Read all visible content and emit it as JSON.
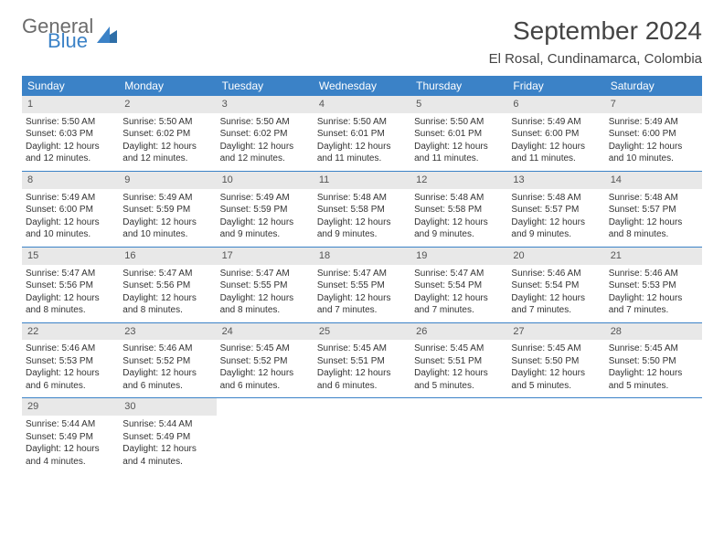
{
  "brand": {
    "part1": "General",
    "part2": "Blue"
  },
  "title": "September 2024",
  "location": "El Rosal, Cundinamarca, Colombia",
  "colors": {
    "header_bg": "#3b82c7",
    "band_bg": "#e8e8e8",
    "text": "#333333",
    "logo_gray": "#6b6b6b",
    "logo_blue": "#3b82c7",
    "page_bg": "#ffffff"
  },
  "weekdays": [
    "Sunday",
    "Monday",
    "Tuesday",
    "Wednesday",
    "Thursday",
    "Friday",
    "Saturday"
  ],
  "weeks": [
    [
      {
        "n": "1",
        "sr": "5:50 AM",
        "ss": "6:03 PM",
        "dl": "12 hours and 12 minutes."
      },
      {
        "n": "2",
        "sr": "5:50 AM",
        "ss": "6:02 PM",
        "dl": "12 hours and 12 minutes."
      },
      {
        "n": "3",
        "sr": "5:50 AM",
        "ss": "6:02 PM",
        "dl": "12 hours and 12 minutes."
      },
      {
        "n": "4",
        "sr": "5:50 AM",
        "ss": "6:01 PM",
        "dl": "12 hours and 11 minutes."
      },
      {
        "n": "5",
        "sr": "5:50 AM",
        "ss": "6:01 PM",
        "dl": "12 hours and 11 minutes."
      },
      {
        "n": "6",
        "sr": "5:49 AM",
        "ss": "6:00 PM",
        "dl": "12 hours and 11 minutes."
      },
      {
        "n": "7",
        "sr": "5:49 AM",
        "ss": "6:00 PM",
        "dl": "12 hours and 10 minutes."
      }
    ],
    [
      {
        "n": "8",
        "sr": "5:49 AM",
        "ss": "6:00 PM",
        "dl": "12 hours and 10 minutes."
      },
      {
        "n": "9",
        "sr": "5:49 AM",
        "ss": "5:59 PM",
        "dl": "12 hours and 10 minutes."
      },
      {
        "n": "10",
        "sr": "5:49 AM",
        "ss": "5:59 PM",
        "dl": "12 hours and 9 minutes."
      },
      {
        "n": "11",
        "sr": "5:48 AM",
        "ss": "5:58 PM",
        "dl": "12 hours and 9 minutes."
      },
      {
        "n": "12",
        "sr": "5:48 AM",
        "ss": "5:58 PM",
        "dl": "12 hours and 9 minutes."
      },
      {
        "n": "13",
        "sr": "5:48 AM",
        "ss": "5:57 PM",
        "dl": "12 hours and 9 minutes."
      },
      {
        "n": "14",
        "sr": "5:48 AM",
        "ss": "5:57 PM",
        "dl": "12 hours and 8 minutes."
      }
    ],
    [
      {
        "n": "15",
        "sr": "5:47 AM",
        "ss": "5:56 PM",
        "dl": "12 hours and 8 minutes."
      },
      {
        "n": "16",
        "sr": "5:47 AM",
        "ss": "5:56 PM",
        "dl": "12 hours and 8 minutes."
      },
      {
        "n": "17",
        "sr": "5:47 AM",
        "ss": "5:55 PM",
        "dl": "12 hours and 8 minutes."
      },
      {
        "n": "18",
        "sr": "5:47 AM",
        "ss": "5:55 PM",
        "dl": "12 hours and 7 minutes."
      },
      {
        "n": "19",
        "sr": "5:47 AM",
        "ss": "5:54 PM",
        "dl": "12 hours and 7 minutes."
      },
      {
        "n": "20",
        "sr": "5:46 AM",
        "ss": "5:54 PM",
        "dl": "12 hours and 7 minutes."
      },
      {
        "n": "21",
        "sr": "5:46 AM",
        "ss": "5:53 PM",
        "dl": "12 hours and 7 minutes."
      }
    ],
    [
      {
        "n": "22",
        "sr": "5:46 AM",
        "ss": "5:53 PM",
        "dl": "12 hours and 6 minutes."
      },
      {
        "n": "23",
        "sr": "5:46 AM",
        "ss": "5:52 PM",
        "dl": "12 hours and 6 minutes."
      },
      {
        "n": "24",
        "sr": "5:45 AM",
        "ss": "5:52 PM",
        "dl": "12 hours and 6 minutes."
      },
      {
        "n": "25",
        "sr": "5:45 AM",
        "ss": "5:51 PM",
        "dl": "12 hours and 6 minutes."
      },
      {
        "n": "26",
        "sr": "5:45 AM",
        "ss": "5:51 PM",
        "dl": "12 hours and 5 minutes."
      },
      {
        "n": "27",
        "sr": "5:45 AM",
        "ss": "5:50 PM",
        "dl": "12 hours and 5 minutes."
      },
      {
        "n": "28",
        "sr": "5:45 AM",
        "ss": "5:50 PM",
        "dl": "12 hours and 5 minutes."
      }
    ],
    [
      {
        "n": "29",
        "sr": "5:44 AM",
        "ss": "5:49 PM",
        "dl": "12 hours and 4 minutes."
      },
      {
        "n": "30",
        "sr": "5:44 AM",
        "ss": "5:49 PM",
        "dl": "12 hours and 4 minutes."
      },
      null,
      null,
      null,
      null,
      null
    ]
  ],
  "labels": {
    "sunrise": "Sunrise:",
    "sunset": "Sunset:",
    "daylight": "Daylight:"
  }
}
